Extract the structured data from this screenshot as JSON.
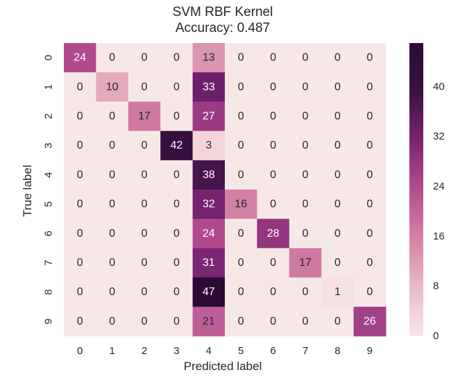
{
  "chart_data": {
    "type": "heatmap",
    "title": "SVM RBF Kernel",
    "subtitle": "Accuracy: 0.487",
    "xlabel": "Predicted label",
    "ylabel": "True label",
    "x_categories": [
      "0",
      "1",
      "2",
      "3",
      "4",
      "5",
      "6",
      "7",
      "8",
      "9"
    ],
    "y_categories": [
      "0",
      "1",
      "2",
      "3",
      "4",
      "5",
      "6",
      "7",
      "8",
      "9"
    ],
    "values": [
      [
        24,
        0,
        0,
        0,
        13,
        0,
        0,
        0,
        0,
        0
      ],
      [
        0,
        10,
        0,
        0,
        33,
        0,
        0,
        0,
        0,
        0
      ],
      [
        0,
        0,
        17,
        0,
        27,
        0,
        0,
        0,
        0,
        0
      ],
      [
        0,
        0,
        0,
        42,
        3,
        0,
        0,
        0,
        0,
        0
      ],
      [
        0,
        0,
        0,
        0,
        38,
        0,
        0,
        0,
        0,
        0
      ],
      [
        0,
        0,
        0,
        0,
        32,
        16,
        0,
        0,
        0,
        0
      ],
      [
        0,
        0,
        0,
        0,
        24,
        0,
        28,
        0,
        0,
        0
      ],
      [
        0,
        0,
        0,
        0,
        31,
        0,
        0,
        17,
        0,
        0
      ],
      [
        0,
        0,
        0,
        0,
        47,
        0,
        0,
        0,
        1,
        0
      ],
      [
        0,
        0,
        0,
        0,
        21,
        0,
        0,
        0,
        0,
        26
      ]
    ],
    "colorbar": {
      "min": 0,
      "max": 47,
      "ticks": [
        0,
        8,
        16,
        24,
        32,
        40
      ],
      "colors": [
        "#f7e8e8",
        "#eab9c5",
        "#d482a6",
        "#b44d8f",
        "#7b2474",
        "#3a1143",
        "#2b0b34"
      ]
    },
    "grid": false,
    "legend": "colorbar-right"
  }
}
